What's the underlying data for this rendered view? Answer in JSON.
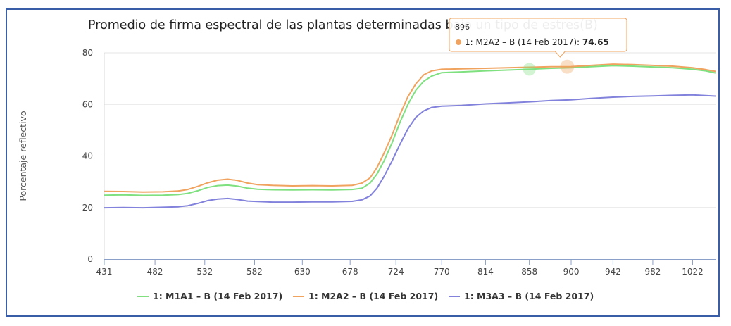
{
  "chart_data": {
    "type": "line",
    "title": "Promedio de firma espectral de las plantas determinadas bajo un tipo de estres(B)",
    "xlabel": "",
    "ylabel": "Porcentaje reflectivo",
    "xlim": [
      431,
      1045
    ],
    "ylim": [
      0,
      80
    ],
    "x_ticks": [
      431,
      482,
      532,
      582,
      630,
      678,
      724,
      770,
      814,
      858,
      900,
      942,
      982,
      1022
    ],
    "y_ticks": [
      0,
      20,
      40,
      60,
      80
    ],
    "grid": "horizontal",
    "legend_position": "bottom",
    "x": [
      431,
      450,
      470,
      490,
      505,
      515,
      525,
      535,
      545,
      555,
      565,
      575,
      585,
      600,
      620,
      640,
      660,
      680,
      690,
      698,
      705,
      712,
      720,
      728,
      736,
      744,
      752,
      760,
      770,
      790,
      814,
      836,
      858,
      880,
      900,
      920,
      942,
      962,
      982,
      1002,
      1022,
      1035,
      1045
    ],
    "series": [
      {
        "name": "1: M1A1 – B (14 Feb 2017)",
        "color": "#7fe07f",
        "values": [
          24.8,
          24.9,
          24.7,
          24.8,
          25.0,
          25.5,
          26.5,
          27.8,
          28.5,
          28.7,
          28.3,
          27.5,
          27.1,
          26.9,
          26.8,
          26.9,
          26.8,
          27.0,
          27.5,
          29.5,
          33.0,
          38.0,
          45.0,
          53.0,
          60.0,
          65.5,
          69.0,
          71.0,
          72.3,
          72.6,
          73.0,
          73.3,
          73.6,
          74.0,
          74.2,
          74.6,
          75.0,
          74.8,
          74.5,
          74.2,
          73.6,
          73.0,
          72.2
        ]
      },
      {
        "name": "1: M2A2 – B (14 Feb 2017)",
        "color": "#f0a35e",
        "values": [
          26.3,
          26.2,
          26.0,
          26.1,
          26.4,
          27.0,
          28.2,
          29.6,
          30.6,
          31.0,
          30.5,
          29.5,
          28.9,
          28.6,
          28.4,
          28.5,
          28.4,
          28.6,
          29.5,
          31.5,
          35.5,
          41.0,
          48.0,
          56.0,
          63.0,
          68.0,
          71.5,
          73.0,
          73.6,
          73.8,
          74.0,
          74.2,
          74.4,
          74.6,
          74.65,
          75.1,
          75.6,
          75.4,
          75.1,
          74.8,
          74.2,
          73.5,
          72.8
        ]
      },
      {
        "name": "1: M3A3 – B (14 Feb 2017)",
        "color": "#8282dc",
        "values": [
          19.9,
          20.0,
          19.9,
          20.1,
          20.3,
          20.7,
          21.6,
          22.7,
          23.3,
          23.5,
          23.1,
          22.5,
          22.3,
          22.1,
          22.1,
          22.2,
          22.2,
          22.4,
          23.0,
          24.5,
          27.5,
          32.0,
          38.0,
          44.5,
          50.5,
          55.0,
          57.5,
          58.8,
          59.3,
          59.6,
          60.2,
          60.6,
          61.0,
          61.5,
          61.8,
          62.3,
          62.8,
          63.1,
          63.3,
          63.5,
          63.7,
          63.4,
          63.2
        ]
      }
    ]
  },
  "tooltip": {
    "header": "896",
    "series_label": "1: M2A2 – B (14 Feb 2017): ",
    "value": "74.65",
    "color": "#f0a35e",
    "x": 896,
    "y": 74.65,
    "hover_color": "#7fe07f",
    "hover_x": 858,
    "hover_y": 73.6
  }
}
